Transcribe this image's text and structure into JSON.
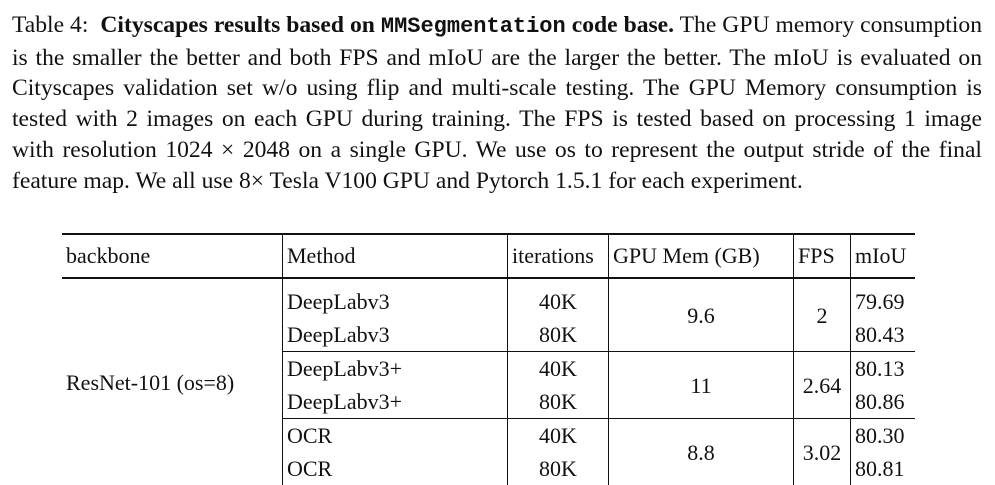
{
  "caption": {
    "label": "Table 4:",
    "title_bold_1": "Cityscapes results based on",
    "title_mono": "MMSegmentation",
    "title_bold_2": "code base.",
    "body": "The GPU memory consumption is the smaller the better and both FPS and mIoU are the larger the better. The mIoU is evaluated on Cityscapes validation set w/o using flip and multi-scale testing. The GPU Memory consumption is tested with 2 images on each GPU during training. The FPS is tested based on processing 1 image with resolution 1024 × 2048 on a single GPU. We use os to represent the output stride of the final feature map. We all use 8× Tesla V100 GPU and Pytorch 1.5.1 for each experiment."
  },
  "table": {
    "headers": {
      "backbone": "backbone",
      "method": "Method",
      "iterations": "iterations",
      "gpu_mem": "GPU Mem (GB)",
      "fps": "FPS",
      "miou": "mIoU"
    },
    "backbone": "ResNet-101 (os=8)",
    "groups": [
      {
        "gpu_mem": "9.6",
        "fps": "2",
        "rows": [
          {
            "method": "DeepLabv3",
            "iterations": "40K",
            "miou": "79.69"
          },
          {
            "method": "DeepLabv3",
            "iterations": "80K",
            "miou": "80.43"
          }
        ]
      },
      {
        "gpu_mem": "11",
        "fps": "2.64",
        "rows": [
          {
            "method": "DeepLabv3+",
            "iterations": "40K",
            "miou": "80.13"
          },
          {
            "method": "DeepLabv3+",
            "iterations": "80K",
            "miou": "80.86"
          }
        ]
      },
      {
        "gpu_mem": "8.8",
        "fps": "3.02",
        "rows": [
          {
            "method": "OCR",
            "iterations": "40K",
            "miou": "80.30"
          },
          {
            "method": "OCR",
            "iterations": "80K",
            "miou": "80.81"
          }
        ]
      }
    ]
  }
}
